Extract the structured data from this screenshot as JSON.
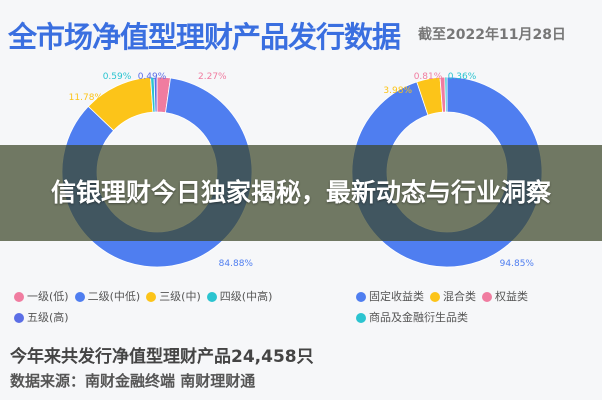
{
  "header": {
    "title": "全市场净值型理财产品发行数据",
    "date": "截至2022年11月28日"
  },
  "overlay": {
    "headline": "信银理财今日独家揭秘，最新动态与行业洞察"
  },
  "chart_data": [
    {
      "type": "pie",
      "donut": true,
      "categories": [
        "一级(低)",
        "二级(中低)",
        "三级(中)",
        "四级(中高)",
        "五级(高)"
      ],
      "values": [
        2.27,
        84.88,
        11.78,
        0.59,
        0.49
      ],
      "labels": [
        "2.27%",
        "84.88%",
        "11.78%",
        "0.59%",
        "0.49%"
      ],
      "colors": [
        "#f07ca0",
        "#4f7ef0",
        "#fcc419",
        "#2bc4d0",
        "#5b6ee6"
      ],
      "legend": "bottom"
    },
    {
      "type": "pie",
      "donut": true,
      "categories": [
        "固定收益类",
        "混合类",
        "权益类",
        "商品及金融衍生品类"
      ],
      "values": [
        94.85,
        3.98,
        0.81,
        0.36
      ],
      "labels": [
        "94.85%",
        "3.98%",
        "0.81%",
        "0.36%"
      ],
      "colors": [
        "#4f7ef0",
        "#fcc419",
        "#f07ca0",
        "#2bc4d0"
      ],
      "legend": "bottom"
    }
  ],
  "footer": {
    "summary": "今年来共发行净值型理财产品24,458只",
    "source": "数据来源：南财金融终端 南财理财通"
  }
}
